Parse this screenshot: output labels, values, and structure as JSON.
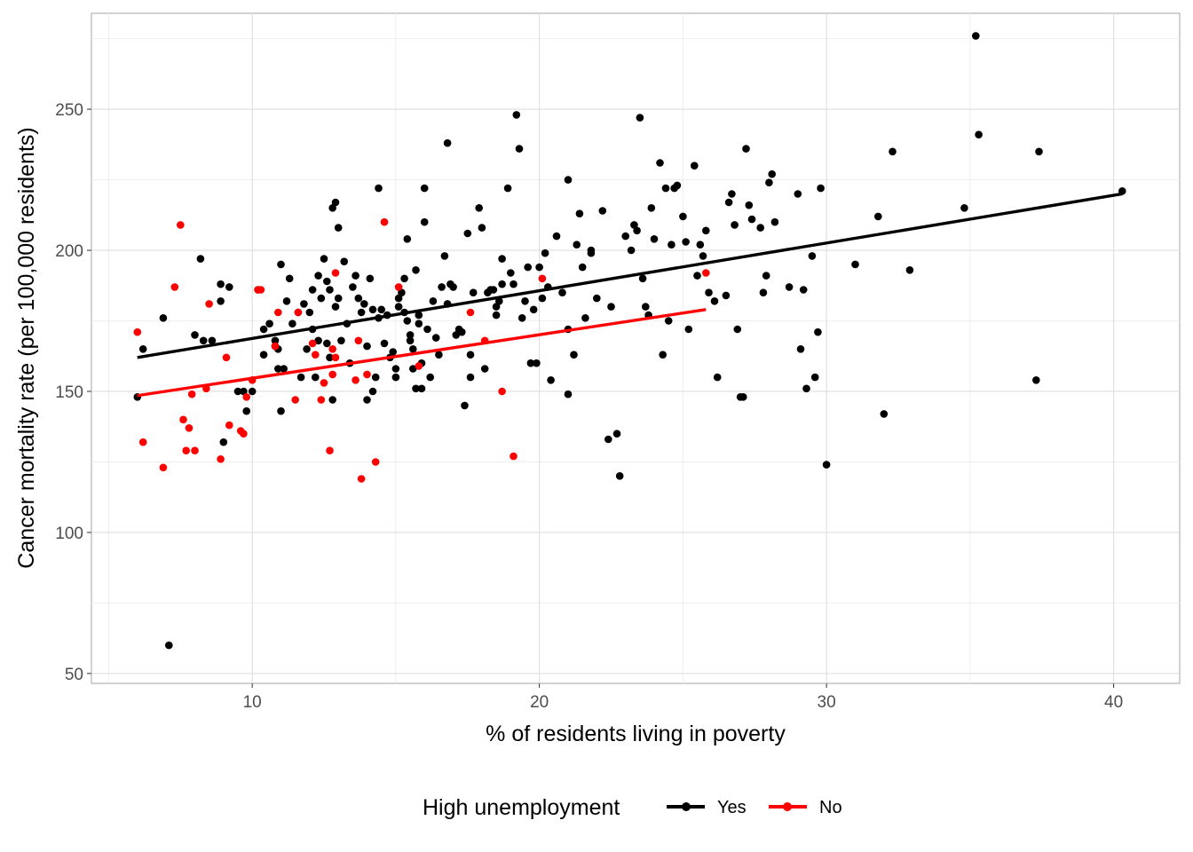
{
  "chart_data": {
    "type": "scatter",
    "title": "",
    "xlabel": "% of residents living in poverty",
    "ylabel": "Cancer mortality rate (per 100,000 residents)",
    "xlim": [
      4.4,
      42.3
    ],
    "ylim": [
      46.5,
      284
    ],
    "x_ticks": [
      10,
      20,
      30,
      40
    ],
    "y_ticks": [
      50,
      100,
      150,
      200,
      250
    ],
    "x_tick_labels": [
      "10",
      "20",
      "30",
      "40"
    ],
    "y_tick_labels": [
      "50",
      "100",
      "150",
      "200",
      "250"
    ],
    "grid": true,
    "legend": {
      "title": "High unemployment",
      "placement": "bottom"
    },
    "series": [
      {
        "name": "Yes",
        "color": "#000000",
        "trend": {
          "x": [
            6.0,
            40.3
          ],
          "y": [
            162,
            220
          ]
        },
        "points": [
          [
            6.0,
            148
          ],
          [
            6.2,
            165
          ],
          [
            6.9,
            176
          ],
          [
            7.1,
            60
          ],
          [
            8.0,
            170
          ],
          [
            8.2,
            197
          ],
          [
            8.3,
            168
          ],
          [
            8.6,
            168
          ],
          [
            8.9,
            188
          ],
          [
            8.9,
            182
          ],
          [
            9.0,
            132
          ],
          [
            9.2,
            187
          ],
          [
            9.5,
            150
          ],
          [
            9.7,
            150
          ],
          [
            9.8,
            143
          ],
          [
            10.0,
            150
          ],
          [
            10.2,
            186
          ],
          [
            10.4,
            163
          ],
          [
            10.4,
            172
          ],
          [
            10.6,
            174
          ],
          [
            10.8,
            166
          ],
          [
            10.8,
            168
          ],
          [
            10.9,
            158
          ],
          [
            10.9,
            165
          ],
          [
            11.0,
            143
          ],
          [
            11.0,
            195
          ],
          [
            11.1,
            158
          ],
          [
            11.2,
            182
          ],
          [
            11.3,
            190
          ],
          [
            11.4,
            174
          ],
          [
            11.6,
            178
          ],
          [
            11.7,
            155
          ],
          [
            11.8,
            181
          ],
          [
            11.9,
            165
          ],
          [
            12.0,
            178
          ],
          [
            12.1,
            172
          ],
          [
            12.1,
            186
          ],
          [
            12.2,
            155
          ],
          [
            12.3,
            191
          ],
          [
            12.3,
            168
          ],
          [
            12.4,
            183
          ],
          [
            12.5,
            197
          ],
          [
            12.6,
            189
          ],
          [
            12.6,
            167
          ],
          [
            12.7,
            186
          ],
          [
            12.7,
            162
          ],
          [
            12.8,
            147
          ],
          [
            12.8,
            215
          ],
          [
            12.9,
            217
          ],
          [
            12.9,
            180
          ],
          [
            13.0,
            208
          ],
          [
            13.0,
            183
          ],
          [
            13.1,
            168
          ],
          [
            13.2,
            196
          ],
          [
            13.3,
            174
          ],
          [
            13.4,
            160
          ],
          [
            13.5,
            187
          ],
          [
            13.6,
            191
          ],
          [
            13.7,
            183
          ],
          [
            13.8,
            178
          ],
          [
            13.9,
            181
          ],
          [
            14.0,
            166
          ],
          [
            14.0,
            147
          ],
          [
            14.1,
            190
          ],
          [
            14.2,
            179
          ],
          [
            14.2,
            150
          ],
          [
            14.3,
            155
          ],
          [
            14.4,
            222
          ],
          [
            14.4,
            176
          ],
          [
            14.5,
            179
          ],
          [
            14.6,
            167
          ],
          [
            14.7,
            177
          ],
          [
            14.8,
            162
          ],
          [
            14.9,
            164
          ],
          [
            15.0,
            155
          ],
          [
            15.0,
            158
          ],
          [
            15.1,
            180
          ],
          [
            15.1,
            183
          ],
          [
            15.2,
            185
          ],
          [
            15.3,
            178
          ],
          [
            15.3,
            190
          ],
          [
            15.4,
            204
          ],
          [
            15.4,
            175
          ],
          [
            15.5,
            168
          ],
          [
            15.5,
            170
          ],
          [
            15.6,
            158
          ],
          [
            15.6,
            165
          ],
          [
            15.7,
            193
          ],
          [
            15.7,
            151
          ],
          [
            15.8,
            177
          ],
          [
            15.8,
            174
          ],
          [
            15.9,
            160
          ],
          [
            15.9,
            151
          ],
          [
            16.0,
            222
          ],
          [
            16.0,
            210
          ],
          [
            16.1,
            172
          ],
          [
            16.2,
            155
          ],
          [
            16.3,
            182
          ],
          [
            16.4,
            169
          ],
          [
            16.5,
            163
          ],
          [
            16.6,
            187
          ],
          [
            16.7,
            198
          ],
          [
            16.8,
            238
          ],
          [
            16.8,
            181
          ],
          [
            16.9,
            188
          ],
          [
            17.0,
            187
          ],
          [
            17.1,
            170
          ],
          [
            17.2,
            172
          ],
          [
            17.3,
            171
          ],
          [
            17.4,
            145
          ],
          [
            17.5,
            206
          ],
          [
            17.6,
            163
          ],
          [
            17.6,
            155
          ],
          [
            17.7,
            185
          ],
          [
            17.9,
            215
          ],
          [
            18.0,
            208
          ],
          [
            18.1,
            158
          ],
          [
            18.2,
            185
          ],
          [
            18.3,
            186
          ],
          [
            18.4,
            186
          ],
          [
            18.5,
            180
          ],
          [
            18.5,
            177
          ],
          [
            18.6,
            182
          ],
          [
            18.7,
            197
          ],
          [
            18.7,
            188
          ],
          [
            18.9,
            222
          ],
          [
            19.0,
            192
          ],
          [
            19.1,
            188
          ],
          [
            19.2,
            248
          ],
          [
            19.3,
            236
          ],
          [
            19.4,
            176
          ],
          [
            19.5,
            182
          ],
          [
            19.6,
            194
          ],
          [
            19.7,
            160
          ],
          [
            19.8,
            179
          ],
          [
            19.9,
            160
          ],
          [
            20.0,
            194
          ],
          [
            20.1,
            183
          ],
          [
            20.2,
            199
          ],
          [
            20.3,
            187
          ],
          [
            20.4,
            154
          ],
          [
            20.6,
            205
          ],
          [
            20.8,
            185
          ],
          [
            21.0,
            149
          ],
          [
            21.0,
            172
          ],
          [
            21.0,
            225
          ],
          [
            21.2,
            163
          ],
          [
            21.3,
            202
          ],
          [
            21.4,
            213
          ],
          [
            21.5,
            194
          ],
          [
            21.6,
            176
          ],
          [
            21.8,
            199
          ],
          [
            21.8,
            200
          ],
          [
            22.0,
            183
          ],
          [
            22.2,
            214
          ],
          [
            22.4,
            133
          ],
          [
            22.5,
            180
          ],
          [
            22.7,
            135
          ],
          [
            22.8,
            120
          ],
          [
            23.0,
            205
          ],
          [
            23.2,
            200
          ],
          [
            23.3,
            209
          ],
          [
            23.4,
            207
          ],
          [
            23.5,
            247
          ],
          [
            23.6,
            190
          ],
          [
            23.7,
            180
          ],
          [
            23.8,
            177
          ],
          [
            23.9,
            215
          ],
          [
            24.0,
            204
          ],
          [
            24.2,
            231
          ],
          [
            24.3,
            163
          ],
          [
            24.4,
            222
          ],
          [
            24.5,
            175
          ],
          [
            24.6,
            202
          ],
          [
            24.7,
            222
          ],
          [
            24.8,
            223
          ],
          [
            25.0,
            212
          ],
          [
            25.1,
            203
          ],
          [
            25.2,
            172
          ],
          [
            25.4,
            230
          ],
          [
            25.5,
            191
          ],
          [
            25.6,
            202
          ],
          [
            25.7,
            198
          ],
          [
            25.8,
            207
          ],
          [
            25.9,
            185
          ],
          [
            26.1,
            182
          ],
          [
            26.2,
            155
          ],
          [
            26.5,
            184
          ],
          [
            26.6,
            217
          ],
          [
            26.7,
            220
          ],
          [
            26.8,
            209
          ],
          [
            26.9,
            172
          ],
          [
            27.0,
            148
          ],
          [
            27.1,
            148
          ],
          [
            27.2,
            236
          ],
          [
            27.3,
            216
          ],
          [
            27.4,
            211
          ],
          [
            27.7,
            208
          ],
          [
            27.8,
            185
          ],
          [
            27.9,
            191
          ],
          [
            28.0,
            224
          ],
          [
            28.1,
            227
          ],
          [
            28.2,
            210
          ],
          [
            28.7,
            187
          ],
          [
            29.0,
            220
          ],
          [
            29.1,
            165
          ],
          [
            29.2,
            186
          ],
          [
            29.3,
            151
          ],
          [
            29.5,
            198
          ],
          [
            29.6,
            155
          ],
          [
            29.7,
            171
          ],
          [
            29.8,
            222
          ],
          [
            30.0,
            124
          ],
          [
            31.0,
            195
          ],
          [
            31.8,
            212
          ],
          [
            32.0,
            142
          ],
          [
            32.3,
            235
          ],
          [
            32.9,
            193
          ],
          [
            34.8,
            215
          ],
          [
            35.2,
            276
          ],
          [
            35.3,
            241
          ],
          [
            37.3,
            154
          ],
          [
            37.4,
            235
          ],
          [
            40.3,
            221
          ]
        ]
      },
      {
        "name": "No",
        "color": "#ff0000",
        "trend": {
          "x": [
            6.0,
            25.8
          ],
          "y": [
            148.5,
            179
          ]
        },
        "points": [
          [
            6.0,
            171
          ],
          [
            6.2,
            132
          ],
          [
            6.9,
            123
          ],
          [
            7.3,
            187
          ],
          [
            7.5,
            209
          ],
          [
            7.6,
            140
          ],
          [
            7.7,
            129
          ],
          [
            7.8,
            137
          ],
          [
            7.9,
            149
          ],
          [
            8.0,
            129
          ],
          [
            8.4,
            151
          ],
          [
            8.5,
            181
          ],
          [
            8.9,
            126
          ],
          [
            9.1,
            162
          ],
          [
            9.2,
            138
          ],
          [
            9.6,
            136
          ],
          [
            9.7,
            135
          ],
          [
            9.8,
            148
          ],
          [
            10.0,
            154
          ],
          [
            10.2,
            186
          ],
          [
            10.3,
            186
          ],
          [
            10.8,
            166
          ],
          [
            10.9,
            178
          ],
          [
            11.5,
            147
          ],
          [
            11.6,
            178
          ],
          [
            12.1,
            167
          ],
          [
            12.2,
            163
          ],
          [
            12.4,
            147
          ],
          [
            12.5,
            153
          ],
          [
            12.7,
            129
          ],
          [
            12.8,
            165
          ],
          [
            12.8,
            156
          ],
          [
            12.9,
            162
          ],
          [
            12.9,
            192
          ],
          [
            13.6,
            154
          ],
          [
            13.7,
            168
          ],
          [
            13.8,
            119
          ],
          [
            14.0,
            156
          ],
          [
            14.3,
            125
          ],
          [
            14.6,
            210
          ],
          [
            15.1,
            187
          ],
          [
            15.8,
            159
          ],
          [
            17.6,
            178
          ],
          [
            18.1,
            168
          ],
          [
            18.7,
            150
          ],
          [
            19.1,
            127
          ],
          [
            20.1,
            190
          ],
          [
            25.8,
            192
          ]
        ]
      }
    ]
  }
}
